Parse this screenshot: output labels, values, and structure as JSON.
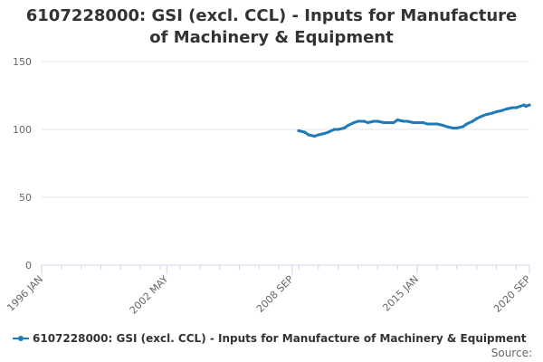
{
  "colors": {
    "series": "#1f7ab8",
    "grid": "#e6e6e6",
    "axis": "#ccd6eb",
    "text": "#333333",
    "muted": "#666666"
  },
  "source_label": "Source:",
  "chart_data": {
    "type": "line",
    "title": "6107228000: GSI (excl. CCL) - Inputs for Manufacture of Machinery & Equipment",
    "xlabel": "",
    "ylabel": "",
    "ylim": [
      0,
      150
    ],
    "yticks": [
      0,
      50,
      100,
      150
    ],
    "grid": true,
    "legend_position": "bottom-left",
    "x_range": [
      1996.0,
      2020.67
    ],
    "x_ticks": [
      {
        "label": "1996 JAN",
        "value": 1996.0
      },
      {
        "label": "2002 MAY",
        "value": 2002.33
      },
      {
        "label": "2008 SEP",
        "value": 2008.67
      },
      {
        "label": "2015 JAN",
        "value": 2015.0
      },
      {
        "label": "2020 SEP",
        "value": 2020.67
      }
    ],
    "series": [
      {
        "name": "6107228000: GSI (excl. CCL) - Inputs for Manufacture of Machinery & Equipment",
        "points": [
          [
            2009.0,
            99
          ],
          [
            2009.3,
            98
          ],
          [
            2009.5,
            96
          ],
          [
            2009.8,
            95
          ],
          [
            2010.0,
            96
          ],
          [
            2010.3,
            97
          ],
          [
            2010.5,
            98
          ],
          [
            2010.8,
            100
          ],
          [
            2011.0,
            100
          ],
          [
            2011.3,
            101
          ],
          [
            2011.5,
            103
          ],
          [
            2011.8,
            105
          ],
          [
            2012.0,
            106
          ],
          [
            2012.3,
            106
          ],
          [
            2012.5,
            105
          ],
          [
            2012.8,
            106
          ],
          [
            2013.0,
            106
          ],
          [
            2013.3,
            105
          ],
          [
            2013.5,
            105
          ],
          [
            2013.8,
            105
          ],
          [
            2014.0,
            107
          ],
          [
            2014.3,
            106
          ],
          [
            2014.5,
            106
          ],
          [
            2014.8,
            105
          ],
          [
            2015.0,
            105
          ],
          [
            2015.3,
            105
          ],
          [
            2015.5,
            104
          ],
          [
            2015.8,
            104
          ],
          [
            2016.0,
            104
          ],
          [
            2016.3,
            103
          ],
          [
            2016.5,
            102
          ],
          [
            2016.8,
            101
          ],
          [
            2017.0,
            101
          ],
          [
            2017.3,
            102
          ],
          [
            2017.5,
            104
          ],
          [
            2017.8,
            106
          ],
          [
            2018.0,
            108
          ],
          [
            2018.3,
            110
          ],
          [
            2018.5,
            111
          ],
          [
            2018.8,
            112
          ],
          [
            2019.0,
            113
          ],
          [
            2019.3,
            114
          ],
          [
            2019.5,
            115
          ],
          [
            2019.8,
            116
          ],
          [
            2020.0,
            116
          ],
          [
            2020.2,
            117
          ],
          [
            2020.4,
            118
          ],
          [
            2020.5,
            117
          ],
          [
            2020.67,
            118
          ]
        ]
      }
    ]
  }
}
